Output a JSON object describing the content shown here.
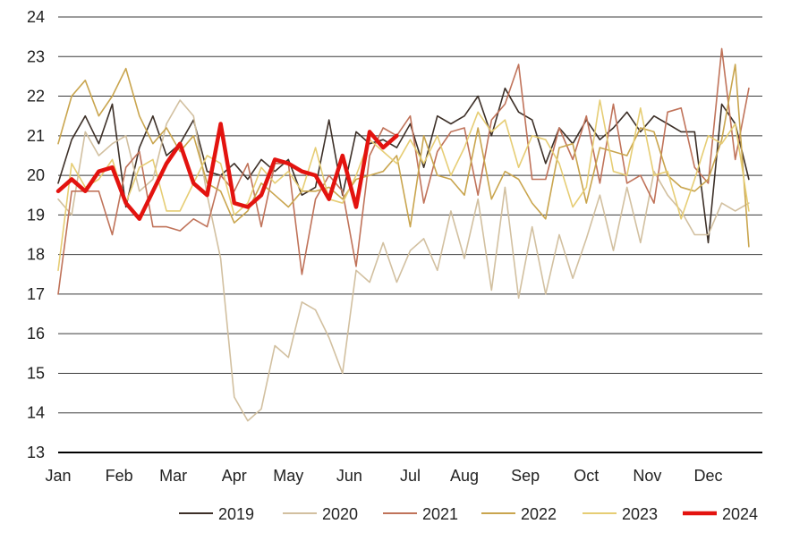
{
  "chart_data": {
    "type": "line",
    "title": "",
    "xlabel": "",
    "ylabel": "",
    "ylim": [
      13,
      24
    ],
    "yticks": [
      13,
      14,
      15,
      16,
      17,
      18,
      19,
      20,
      21,
      22,
      23,
      24
    ],
    "xlim": [
      1,
      53
    ],
    "x_tick_labels": [
      "Jan",
      "Feb",
      "Mar",
      "Apr",
      "May",
      "Jun",
      "Jul",
      "Aug",
      "Sep",
      "Oct",
      "Nov",
      "Dec"
    ],
    "x_tick_weeks": [
      1,
      5.5,
      9.5,
      14,
      18,
      22.5,
      27,
      31,
      35.5,
      40,
      44.5,
      49
    ],
    "grid": true,
    "legend_position": "bottom-right",
    "series": [
      {
        "name": "2019",
        "color": "#3d3028",
        "values": [
          19.8,
          20.9,
          21.5,
          20.8,
          21.8,
          19.2,
          20.7,
          21.5,
          20.5,
          20.8,
          21.4,
          20.1,
          20.0,
          20.3,
          19.9,
          20.4,
          20.1,
          20.4,
          19.5,
          19.7,
          21.4,
          19.5,
          21.1,
          20.8,
          20.9,
          20.7,
          21.3,
          20.2,
          21.5,
          21.3,
          21.5,
          22.0,
          21.0,
          22.2,
          21.6,
          21.4,
          20.3,
          21.2,
          20.8,
          21.4,
          20.9,
          21.2,
          21.6,
          21.1,
          21.5,
          21.3,
          21.1,
          21.1,
          18.3,
          21.8,
          21.3,
          19.9
        ]
      },
      {
        "name": "2020",
        "color": "#d2c0a0",
        "values": [
          19.4,
          19.0,
          21.1,
          20.5,
          20.8,
          21.0,
          19.6,
          19.9,
          21.3,
          21.9,
          21.5,
          19.5,
          17.9,
          14.4,
          13.8,
          14.1,
          15.7,
          15.4,
          16.8,
          16.6,
          15.9,
          15.0,
          17.6,
          17.3,
          18.3,
          17.3,
          18.1,
          18.4,
          17.6,
          19.1,
          17.9,
          19.4,
          17.1,
          19.7,
          16.9,
          18.7,
          17.0,
          18.5,
          17.4,
          18.4,
          19.5,
          18.1,
          19.7,
          18.3,
          20.1,
          19.5,
          19.1,
          18.5,
          18.5,
          19.3,
          19.1,
          19.3
        ]
      },
      {
        "name": "2021",
        "color": "#c0735a",
        "values": [
          17.0,
          19.6,
          19.6,
          19.6,
          18.5,
          20.2,
          20.6,
          18.7,
          18.7,
          18.6,
          18.9,
          18.7,
          20.0,
          19.6,
          20.3,
          18.7,
          20.3,
          20.3,
          17.5,
          19.4,
          20.0,
          19.6,
          17.7,
          20.5,
          21.2,
          21.0,
          21.5,
          19.3,
          20.6,
          21.1,
          21.2,
          19.5,
          21.4,
          21.8,
          22.8,
          19.9,
          19.9,
          21.2,
          20.4,
          21.5,
          19.8,
          21.8,
          19.8,
          20.0,
          19.3,
          21.6,
          21.7,
          20.2,
          19.8,
          23.2,
          20.4,
          22.2
        ]
      },
      {
        "name": "2022",
        "color": "#c9a54e",
        "values": [
          20.8,
          22.0,
          22.4,
          21.5,
          22.0,
          22.7,
          21.5,
          20.8,
          21.2,
          20.6,
          21.0,
          19.8,
          19.6,
          18.8,
          19.1,
          19.8,
          19.5,
          19.2,
          19.6,
          19.6,
          19.7,
          19.4,
          19.9,
          20.0,
          20.1,
          20.5,
          18.7,
          21.0,
          20.0,
          19.9,
          19.5,
          21.2,
          19.4,
          20.1,
          19.9,
          19.3,
          18.9,
          20.7,
          20.8,
          19.3,
          20.7,
          20.6,
          20.5,
          21.2,
          21.1,
          20.0,
          19.7,
          19.6,
          19.9,
          20.9,
          22.8,
          18.2
        ]
      },
      {
        "name": "2023",
        "color": "#e6cd74",
        "values": [
          17.6,
          20.3,
          19.7,
          19.9,
          20.4,
          19.3,
          20.2,
          20.4,
          19.1,
          19.1,
          19.8,
          20.5,
          20.3,
          19.0,
          19.3,
          20.2,
          19.8,
          20.1,
          19.6,
          20.7,
          19.4,
          19.3,
          20.0,
          20.9,
          20.6,
          20.3,
          20.9,
          20.3,
          21.0,
          20.0,
          20.7,
          21.6,
          21.1,
          21.4,
          20.2,
          21.0,
          20.9,
          20.3,
          19.2,
          19.7,
          21.9,
          20.1,
          20.0,
          21.7,
          20.0,
          20.1,
          18.9,
          19.9,
          21.0,
          20.8,
          21.3,
          19.1
        ]
      },
      {
        "name": "2024",
        "color": "#e3130f",
        "values": [
          19.6,
          19.9,
          19.6,
          20.1,
          20.2,
          19.3,
          18.9,
          19.6,
          20.3,
          20.8,
          19.8,
          19.5,
          21.3,
          19.3,
          19.2,
          19.5,
          20.4,
          20.3,
          20.1,
          20.0,
          19.4,
          20.5,
          19.2,
          21.1,
          20.7,
          21.0
        ]
      }
    ]
  }
}
